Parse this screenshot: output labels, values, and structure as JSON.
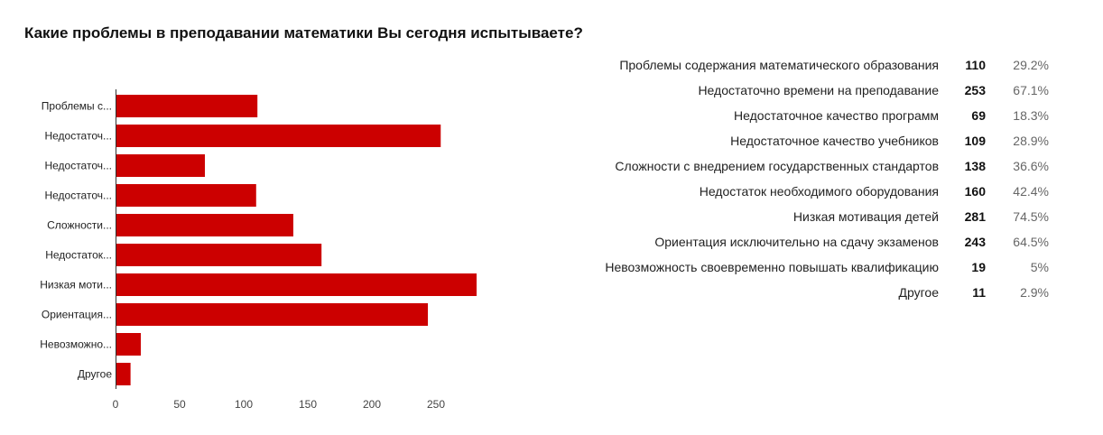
{
  "title": "Какие проблемы в преподавании математики Вы сегодня испытываете?",
  "chart_data": {
    "type": "bar",
    "orientation": "horizontal",
    "title": "Какие проблемы в преподавании математики Вы сегодня испытываете?",
    "categories": [
      "Проблемы с...",
      "Недостаточ...",
      "Недостаточ...",
      "Недостаточ...",
      "Сложности...",
      "Недостаток...",
      "Низкая моти...",
      "Ориентация...",
      "Невозможно...",
      "Другое"
    ],
    "values": [
      110,
      253,
      69,
      109,
      138,
      160,
      281,
      243,
      19,
      11
    ],
    "xlim": [
      0,
      280
    ],
    "xticks": [
      "0",
      "50",
      "100",
      "150",
      "200",
      "250"
    ],
    "bar_color": "#cc0000",
    "grid": false
  },
  "legend_table": [
    {
      "label": "Проблемы содержания математического образования",
      "count": "110",
      "percent": "29.2%"
    },
    {
      "label": "Недостаточно времени на преподавание",
      "count": "253",
      "percent": "67.1%"
    },
    {
      "label": "Недостаточное качество программ",
      "count": "69",
      "percent": "18.3%"
    },
    {
      "label": "Недостаточное качество учебников",
      "count": "109",
      "percent": "28.9%"
    },
    {
      "label": "Сложности с внедрением государственных стандартов",
      "count": "138",
      "percent": "36.6%"
    },
    {
      "label": "Недостаток необходимого оборудования",
      "count": "160",
      "percent": "42.4%"
    },
    {
      "label": "Низкая мотивация детей",
      "count": "281",
      "percent": "74.5%"
    },
    {
      "label": "Ориентация исключительно на сдачу экзаменов",
      "count": "243",
      "percent": "64.5%"
    },
    {
      "label": "Невозможность своевременно повышать квалификацию",
      "count": "19",
      "percent": "5%"
    },
    {
      "label": "Другое",
      "count": "11",
      "percent": "2.9%"
    }
  ]
}
